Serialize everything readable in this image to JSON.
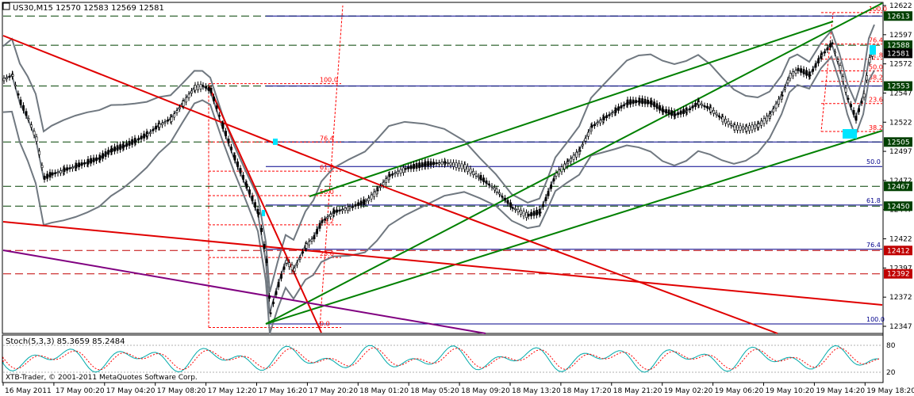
{
  "header": {
    "symbol_line": "US30,M15  12570 12583 12569 12581"
  },
  "indicator": {
    "label": "Stoch(5,3,3) 85.3659 85.2484",
    "levels": [
      "80",
      "20"
    ]
  },
  "footer": {
    "copyright": "XTB-Trader, © 2001-2011 MetaQuotes Software Corp."
  },
  "colors": {
    "price_tag_green": "#004000",
    "price_tag_red": "#c00000",
    "fib_red": "#ff0000",
    "fib_blue": "#00008b",
    "trend_green": "#008000",
    "trend_red": "#e00000",
    "trend_purple": "#800080",
    "bands": "#707880",
    "candles": "#000000",
    "stoch_main": "#00aaaa",
    "stoch_signal": "#ff0000",
    "highlight": "#00e5ff"
  },
  "chart_data": {
    "type": "candlestick",
    "symbol": "US30",
    "timeframe": "M15",
    "ohlc_header": {
      "open": 12570,
      "high": 12583,
      "low": 12569,
      "close": 12581
    },
    "ylim": [
      12340,
      12630
    ],
    "y_ticks": [
      "12622",
      "12597",
      "12572",
      "12547",
      "12522",
      "12497",
      "12472",
      "12447",
      "12422",
      "12397",
      "12372",
      "12347"
    ],
    "x_ticks": [
      "16 May 2011",
      "17 May 00:20",
      "17 May 04:20",
      "17 May 08:20",
      "17 May 12:20",
      "17 May 16:20",
      "17 May 20:20",
      "18 May 01:20",
      "18 May 05:20",
      "18 May 09:20",
      "18 May 13:20",
      "18 May 17:20",
      "18 May 21:20",
      "19 May 02:20",
      "19 May 06:20",
      "19 May 10:20",
      "19 May 14:20",
      "19 May 18:20"
    ],
    "price_tags": [
      {
        "value": 12613,
        "label": "12613",
        "style": "green"
      },
      {
        "value": 12588,
        "label": "12588",
        "style": "green"
      },
      {
        "value": 12581,
        "label": "12581",
        "style": "current"
      },
      {
        "value": 12553,
        "label": "12553",
        "style": "green"
      },
      {
        "value": 12505,
        "label": "12505",
        "style": "green"
      },
      {
        "value": 12467,
        "label": "12467",
        "style": "green"
      },
      {
        "value": 12450,
        "label": "12450",
        "style": "green"
      },
      {
        "value": 12412,
        "label": "12412",
        "style": "red"
      },
      {
        "value": 12392,
        "label": "12392",
        "style": "red"
      }
    ],
    "fib_left": {
      "color": "red",
      "levels": [
        {
          "label": "100.0",
          "value": 12555
        },
        {
          "label": "76.4",
          "value": 12505
        },
        {
          "label": "61.8",
          "value": 12480
        },
        {
          "label": "50.0",
          "value": 12459
        },
        {
          "label": "38.2",
          "value": 12434
        },
        {
          "label": "23.6",
          "value": 12406
        },
        {
          "label": "0.0",
          "value": 12346
        }
      ]
    },
    "fib_right_red": {
      "color": "red",
      "levels": [
        {
          "label": "100.0",
          "value": 12616
        },
        {
          "label": "76.4",
          "value": 12589
        },
        {
          "label": "61.8",
          "value": 12576
        },
        {
          "label": "50.0",
          "value": 12566
        },
        {
          "label": "38.2",
          "value": 12557
        },
        {
          "label": "23.6",
          "value": 12538
        },
        {
          "label": "38.2",
          "value": 12514
        }
      ]
    },
    "fib_right_blue": {
      "color": "blue",
      "levels": [
        {
          "label": "50.0",
          "value": 12484
        },
        {
          "label": "61.8",
          "value": 12451
        },
        {
          "label": "76.4",
          "value": 12413
        },
        {
          "label": "100.0",
          "value": 12349
        }
      ]
    },
    "stochastic": {
      "k": 85.3659,
      "d": 85.2484,
      "params": "5,3,3",
      "levels": [
        80,
        20
      ]
    }
  }
}
